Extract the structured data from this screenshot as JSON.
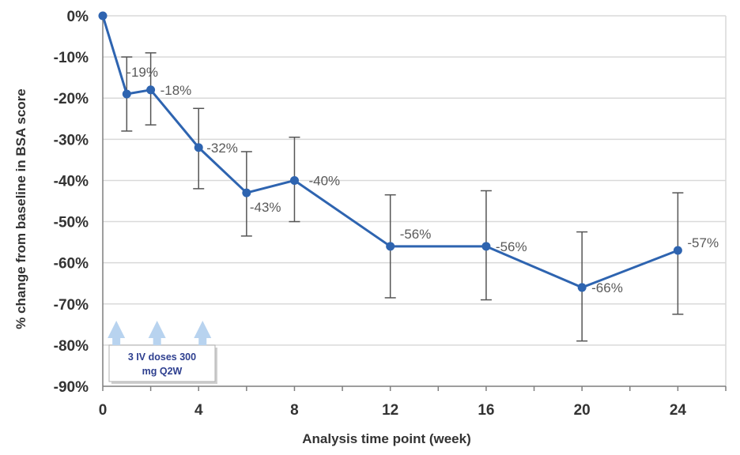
{
  "chart_data": {
    "type": "line",
    "xlabel": "Analysis time point (week)",
    "ylabel": "% change from baseline in BSA score",
    "ylim": [
      -90,
      0
    ],
    "xlim": [
      0,
      26
    ],
    "x_ticks": [
      0,
      4,
      8,
      12,
      16,
      20,
      24
    ],
    "y_ticks": [
      0,
      -10,
      -20,
      -30,
      -40,
      -50,
      -60,
      -70,
      -80,
      -90
    ],
    "grid": "horizontal",
    "colors": {
      "line": "#2e64b0",
      "marker": "#2e64b0",
      "error_bar": "#555555",
      "grid": "#d9d9d9",
      "dose_arrow": "#b8d3ef"
    },
    "series": [
      {
        "x": [
          0,
          1,
          2,
          4,
          6,
          8,
          12,
          16,
          20,
          24
        ],
        "values": [
          0,
          -19,
          -18,
          -32,
          -43,
          -40,
          -56,
          -56,
          -66,
          -57
        ],
        "error_low": [
          0,
          -28,
          -26.5,
          -42,
          -53.5,
          -50,
          -68.5,
          -69,
          -79,
          -72.5
        ],
        "error_high": [
          0,
          -10,
          -9,
          -22.5,
          -33,
          -29.5,
          -43.5,
          -42.5,
          -52.5,
          -43
        ],
        "data_labels": [
          "",
          "-19%",
          "-18%",
          "-32%",
          "-43%",
          "-40%",
          "-56%",
          "-56%",
          "-66%",
          "-57%"
        ]
      }
    ],
    "annotations": {
      "dose_box_text_line1": "3 IV doses  300",
      "dose_box_text_line2": "mg Q2W",
      "dose_arrow_weeks": [
        0.5,
        2.2,
        4.1
      ]
    }
  }
}
